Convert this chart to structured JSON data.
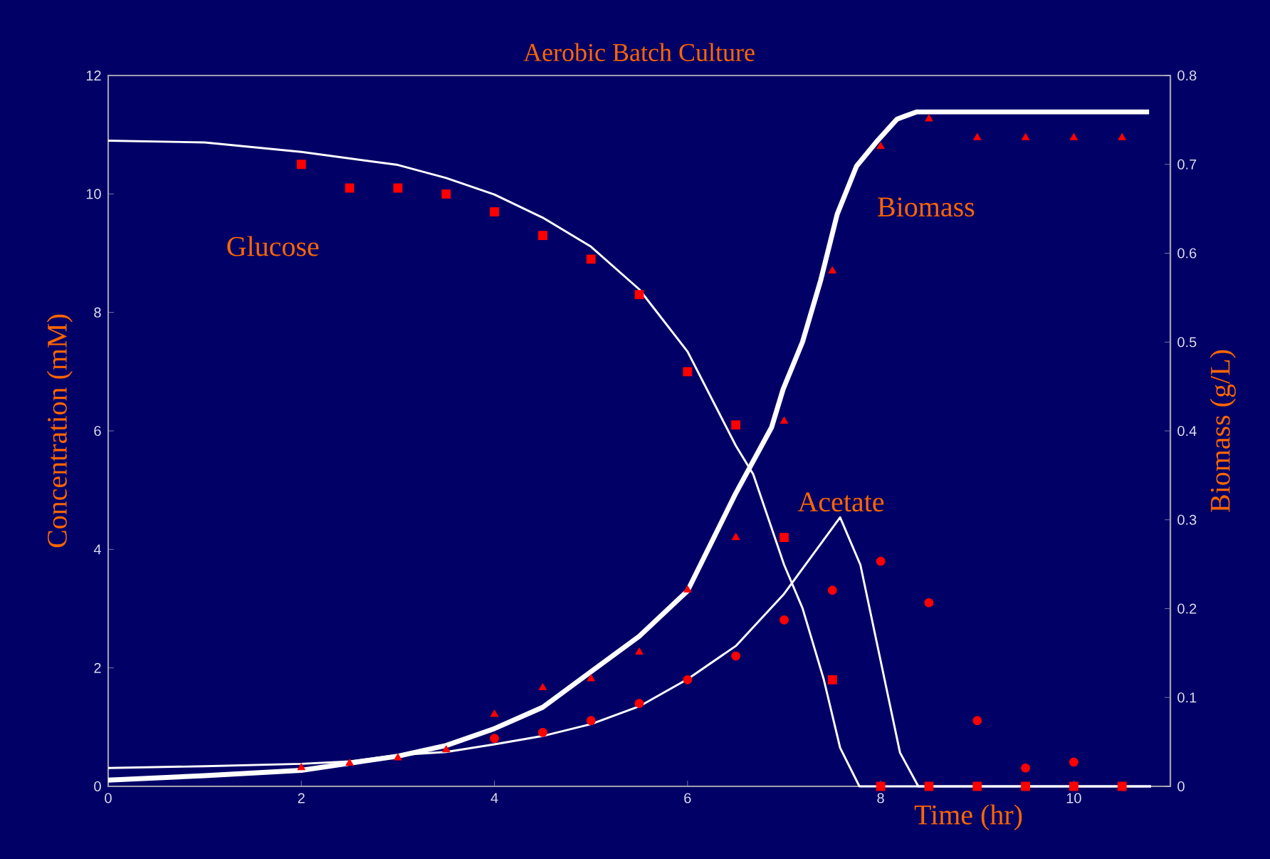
{
  "chart_data": {
    "type": "scatter",
    "title": "Aerobic Batch Culture",
    "xlabel": "Time (hr)",
    "ylabel": "Concentration (mM)",
    "y2label": "Biomass (g/L)",
    "xlim": [
      0,
      11
    ],
    "xticks": [
      0,
      2,
      4,
      6,
      8,
      10
    ],
    "ylim": [
      0,
      12
    ],
    "yticks": [
      0,
      2,
      4,
      6,
      8,
      10,
      12
    ],
    "y2lim": [
      0,
      0.8
    ],
    "y2ticks": [
      0,
      0.1,
      0.2,
      0.3,
      0.4,
      0.5,
      0.6,
      0.7,
      0.8
    ],
    "grid": false,
    "legend": false,
    "series": [
      {
        "type": "line",
        "color": "#ffffff",
        "marker": "none",
        "line_style": "solid",
        "x": [
          0,
          1,
          2,
          3,
          3.5,
          4,
          4.5,
          5,
          5.5,
          6,
          6.5,
          6.68,
          7,
          7.19,
          7.41,
          7.58,
          7.78,
          10.8
        ],
        "values": [
          10.9,
          10.87,
          10.71,
          10.49,
          10.27,
          9.99,
          9.6,
          9.11,
          8.39,
          7.34,
          5.75,
          5.27,
          3.74,
          3.01,
          1.81,
          0.65,
          0,
          0
        ]
      },
      {
        "type": "line",
        "color": "#ffffff",
        "marker": "none",
        "line_style": "solid",
        "x": [
          0,
          1,
          2,
          2.5,
          3,
          3.5,
          4,
          4.5,
          5,
          5.5,
          6,
          6.5,
          7,
          7.58,
          7.79,
          8.2,
          8.39,
          10.8
        ],
        "values": [
          0.31,
          0.34,
          0.38,
          0.42,
          0.53,
          0.58,
          0.71,
          0.85,
          1.05,
          1.35,
          1.81,
          2.37,
          3.25,
          4.54,
          3.74,
          0.57,
          0,
          0
        ]
      },
      {
        "type": "line",
        "axis": "y2",
        "color": "#ffffff",
        "marker": "none",
        "line_style": "solid",
        "x": [
          0,
          1,
          2,
          3,
          3.5,
          4,
          4.5,
          5,
          5.5,
          6,
          6.5,
          6.87,
          6.99,
          7.19,
          7.38,
          7.55,
          7.75,
          7.97,
          8.17,
          8.37,
          10.78
        ],
        "values": [
          0.007,
          0.012,
          0.018,
          0.034,
          0.046,
          0.065,
          0.089,
          0.129,
          0.169,
          0.22,
          0.33,
          0.404,
          0.447,
          0.5,
          0.57,
          0.644,
          0.698,
          0.727,
          0.751,
          0.759,
          0.759
        ]
      },
      {
        "color": "#ff0000",
        "marker": "square",
        "x": [
          2,
          2.5,
          3,
          3.5,
          4,
          4.5,
          5,
          5.5,
          6,
          6.5,
          7,
          7.5,
          8,
          8.5,
          9,
          9.5,
          10,
          10.5
        ],
        "values": [
          10.5,
          10.1,
          10.1,
          10.0,
          9.7,
          9.3,
          8.9,
          8.3,
          7.0,
          6.1,
          4.2,
          1.8,
          0,
          0,
          0,
          0,
          0,
          0
        ]
      },
      {
        "color": "#ff0000",
        "marker": "circle",
        "x": [
          4,
          4.5,
          5,
          5.5,
          6,
          6.5,
          7,
          7.5,
          8,
          8.5,
          9,
          9.5,
          10
        ],
        "values": [
          0.81,
          0.91,
          1.11,
          1.4,
          1.8,
          2.2,
          2.81,
          3.31,
          3.8,
          3.1,
          1.11,
          0.31,
          0.41
        ]
      },
      {
        "axis": "y2",
        "color": "#ff0000",
        "marker": "triangle",
        "x": [
          2,
          2.5,
          3,
          3.5,
          4,
          4.5,
          5,
          5.5,
          6,
          6.5,
          7,
          7.5,
          8,
          8.5,
          9,
          9.5,
          10,
          10.5
        ],
        "values": [
          0.021,
          0.026,
          0.032,
          0.041,
          0.081,
          0.111,
          0.121,
          0.151,
          0.221,
          0.28,
          0.411,
          0.58,
          0.72,
          0.751,
          0.73,
          0.73,
          0.73,
          0.73
        ]
      }
    ],
    "annotations": [
      "Glucose",
      "Biomass",
      "Acetate"
    ]
  }
}
